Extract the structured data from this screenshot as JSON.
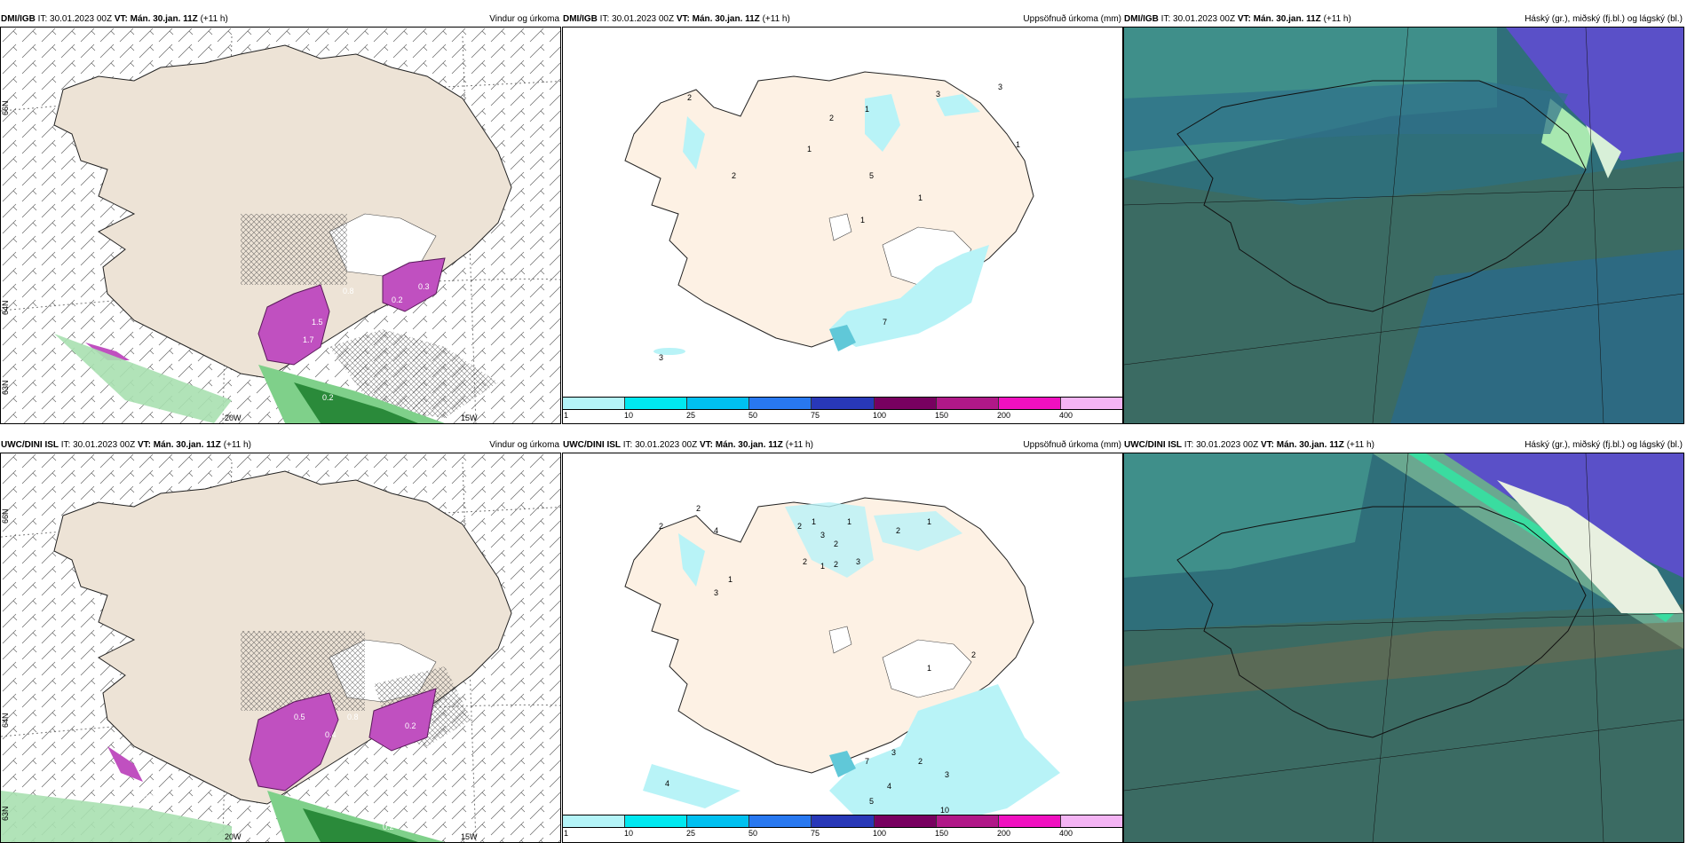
{
  "panels": [
    {
      "model": "DMI/IGB",
      "it_label": "IT:",
      "it": "30.01.2023 00Z",
      "vt_label": "VT:",
      "vt": "Mán. 30.jan. 11Z",
      "lead": "(+11 h)",
      "product": "Vindur og úrkoma"
    },
    {
      "model": "DMI/IGB",
      "it_label": "IT:",
      "it": "30.01.2023 00Z",
      "vt_label": "VT:",
      "vt": "Mán. 30.jan. 11Z",
      "lead": "(+11 h)",
      "product": "Uppsöfnuð úrkoma (mm)"
    },
    {
      "model": "DMI/IGB",
      "it_label": "IT:",
      "it": "30.01.2023 00Z",
      "vt_label": "VT:",
      "vt": "Mán. 30.jan. 11Z",
      "lead": "(+11 h)",
      "product": "Háský (gr.), miðský (fj.bl.) og lágský (bl.)"
    },
    {
      "model": "UWC/DINI ISL",
      "it_label": "IT:",
      "it": "30.01.2023 00Z",
      "vt_label": "VT:",
      "vt": "Mán. 30.jan. 11Z",
      "lead": "(+11 h)",
      "product": "Vindur og úrkoma"
    },
    {
      "model": "UWC/DINI ISL",
      "it_label": "IT:",
      "it": "30.01.2023 00Z",
      "vt_label": "VT:",
      "vt": "Mán. 30.jan. 11Z",
      "lead": "(+11 h)",
      "product": "Uppsöfnuð úrkoma (mm)"
    },
    {
      "model": "UWC/DINI ISL",
      "it_label": "IT:",
      "it": "30.01.2023 00Z",
      "vt_label": "VT:",
      "vt": "Mán. 30.jan. 11Z",
      "lead": "(+11 h)",
      "product": "Háský (gr.), miðský (fj.bl.) og lágský (bl.)"
    }
  ],
  "wind_axis": {
    "lat1": "66N",
    "lat2": "64N",
    "lat3": "63N",
    "lon1": "20W",
    "lon2": "15W"
  },
  "wind_values_top": [
    "0.2",
    "1.7",
    "0.8",
    "0.3",
    "1.5",
    "0.2"
  ],
  "wind_values_bottom": [
    "0.2",
    "0.4",
    "0.5",
    "0.3",
    "0.2",
    "0.8",
    "0.5",
    "0.2"
  ],
  "precip_top_labels": [
    "2",
    "3",
    "2",
    "1",
    "2",
    "1",
    "3",
    "1",
    "1",
    "5",
    "1",
    "7",
    "3"
  ],
  "precip_bottom_labels": [
    "2",
    "4",
    "3",
    "1",
    "2",
    "2",
    "1",
    "3",
    "2",
    "2",
    "2",
    "1",
    "1",
    "3",
    "2",
    "1",
    "7",
    "3",
    "2",
    "4",
    "3",
    "10",
    "3",
    "5",
    "4",
    "1",
    "2"
  ],
  "colorbar": {
    "colors": [
      "#b4f4f8",
      "#00e8f0",
      "#00c0f0",
      "#2878f0",
      "#2838b8",
      "#780060",
      "#b01888",
      "#f010c0",
      "#f4b4f4"
    ],
    "ticks": [
      "1",
      "10",
      "25",
      "50",
      "75",
      "100",
      "150",
      "200",
      "400"
    ]
  },
  "colors": {
    "land": "#ede3d6",
    "precip_land": "#fdf1e4",
    "cloud_dark": "#3b6b63",
    "cloud_mid": "#2f6f7a",
    "cloud_high": "#6aa890",
    "cloud_violet": "#5a50c8",
    "precip_cyan": "#b8f3f7",
    "precip_purple": "#c050c0",
    "precip_green": "#7fd08a"
  }
}
